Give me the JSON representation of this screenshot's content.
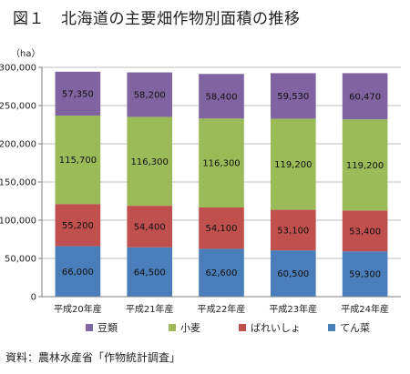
{
  "header": {
    "fig_no": "図１",
    "title": "北海道の主要畑作物別面積の推移"
  },
  "source": "資料：農林水産省「作物統計調査」",
  "colors": {
    "tensai": "#4a7ebb",
    "bareisho": "#c0504d",
    "komugi": "#9bbb59",
    "daizu": "#8064a2"
  },
  "chart_data": {
    "type": "bar",
    "stacked": true,
    "unit_label": "（ha）",
    "categories": [
      "平成20年産",
      "平成21年産",
      "平成22年産",
      "平成23年産",
      "平成24年産"
    ],
    "ylim": [
      0,
      300000
    ],
    "yticks": [
      "0",
      "50,000",
      "100,000",
      "150,000",
      "200,000",
      "250,000",
      "300,000"
    ],
    "ytick_values": [
      0,
      50000,
      100000,
      150000,
      200000,
      250000,
      300000
    ],
    "grid": true,
    "legend_position": "bottom",
    "legend_order": [
      "豆類",
      "小麦",
      "ばれいしょ",
      "てん菜"
    ],
    "series": [
      {
        "name": "てん菜",
        "color": "#4a7ebb",
        "values": [
          66000,
          64500,
          62600,
          60500,
          59300
        ],
        "labels": [
          "66,000",
          "64,500",
          "62,600",
          "60,500",
          "59,300"
        ]
      },
      {
        "name": "ばれいしょ",
        "color": "#c0504d",
        "values": [
          55200,
          54400,
          54100,
          53100,
          53400
        ],
        "labels": [
          "55,200",
          "54,400",
          "54,100",
          "53,100",
          "53,400"
        ]
      },
      {
        "name": "小麦",
        "color": "#9bbb59",
        "values": [
          115700,
          116300,
          116300,
          119200,
          119200
        ],
        "labels": [
          "115,700",
          "116,300",
          "116,300",
          "119,200",
          "119,200"
        ]
      },
      {
        "name": "豆類",
        "color": "#8064a2",
        "values": [
          57350,
          58200,
          58400,
          59530,
          60470
        ],
        "labels": [
          "57,350",
          "58,200",
          "58,400",
          "59,530",
          "60,470"
        ]
      }
    ]
  }
}
